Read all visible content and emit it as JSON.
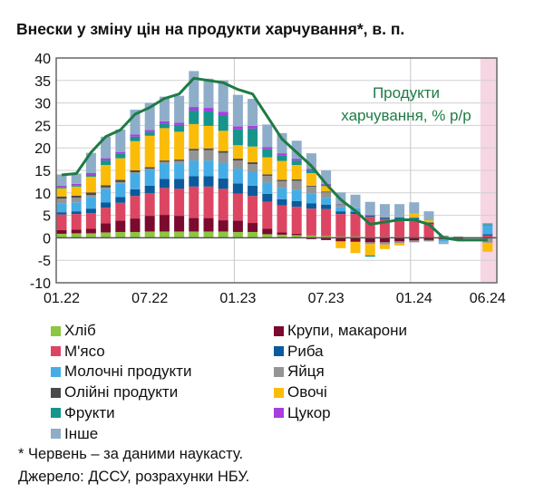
{
  "chart_data": {
    "type": "bar",
    "stacked": true,
    "title": "Внески у зміну цін на продукти харчування*, в. п.",
    "ylim": [
      -10,
      40
    ],
    "yticks": [
      -10,
      -5,
      0,
      5,
      10,
      15,
      20,
      25,
      30,
      35,
      40
    ],
    "xtick_labels": [
      "01.22",
      "07.22",
      "01.23",
      "07.23",
      "01.24",
      "06.24"
    ],
    "xtick_index": [
      0,
      6,
      12,
      18,
      24,
      29
    ],
    "categories": [
      "01.22",
      "02.22",
      "03.22",
      "04.22",
      "05.22",
      "06.22",
      "07.22",
      "08.22",
      "09.22",
      "10.22",
      "11.22",
      "12.22",
      "01.23",
      "02.23",
      "03.23",
      "04.23",
      "05.23",
      "06.23",
      "07.23",
      "08.23",
      "09.23",
      "10.23",
      "11.23",
      "12.23",
      "01.24",
      "02.24",
      "03.24",
      "04.24",
      "05.24",
      "06.24"
    ],
    "highlight_category": "06.24",
    "series": [
      {
        "name": "Хліб",
        "color": "#8dc63f",
        "values": [
          0.9,
          1,
          1,
          1.2,
          1.3,
          1.3,
          1.4,
          1.4,
          1.4,
          1.4,
          1.4,
          1.4,
          1.3,
          1.3,
          0.8,
          0.7,
          0.6,
          0.5,
          0.4,
          0.3,
          0.3,
          0.2,
          0.2,
          0.2,
          0.1,
          0.1,
          0,
          0,
          0,
          0
        ]
      },
      {
        "name": "Крупи, макарони",
        "color": "#7b0a2e",
        "values": [
          0.8,
          0.8,
          1,
          2,
          2.5,
          3,
          3.5,
          3.7,
          3.5,
          3,
          3,
          2.5,
          2.5,
          2,
          1.2,
          0.5,
          0.3,
          -0.3,
          -0.5,
          -0.8,
          -0.9,
          -1,
          -1,
          -0.8,
          -0.6,
          -0.5,
          -0.3,
          -0.2,
          -0.1,
          -0.1
        ]
      },
      {
        "name": "М'ясо",
        "color": "#dc4662",
        "values": [
          3.5,
          3.5,
          3.5,
          3.5,
          4,
          5,
          5,
          6,
          6,
          7,
          7,
          7,
          6,
          6,
          6,
          6,
          6,
          6,
          6,
          5,
          5,
          4.5,
          4,
          4,
          4,
          3,
          0,
          0,
          0,
          0.5
        ]
      },
      {
        "name": "Риба",
        "color": "#0b5a9c",
        "values": [
          0.5,
          0.6,
          1,
          1.2,
          1.3,
          1.5,
          1.7,
          2,
          2.2,
          2.3,
          2.3,
          2.3,
          2.3,
          2.3,
          1.8,
          1.4,
          1.3,
          1.2,
          1,
          0.6,
          0.5,
          0.3,
          0.3,
          0.3,
          0.3,
          0.3,
          0,
          0,
          0,
          0.3
        ]
      },
      {
        "name": "Молочні продукти",
        "color": "#45ade6",
        "values": [
          2,
          2,
          2.5,
          3,
          3,
          3.5,
          3.5,
          3.5,
          3.5,
          3.5,
          3.5,
          3.5,
          3.3,
          3,
          2.5,
          2.5,
          2.5,
          2.2,
          1.5,
          1,
          0.8,
          0,
          0,
          0,
          0.2,
          0,
          -0.5,
          0,
          0,
          2
        ]
      },
      {
        "name": "Яйця",
        "color": "#959595",
        "values": [
          1,
          1,
          0.5,
          0.3,
          0.3,
          0.3,
          0.3,
          0.3,
          0.5,
          2.2,
          2.3,
          2.2,
          1.8,
          1.8,
          1.5,
          1.5,
          2,
          1.5,
          1.2,
          0.5,
          0,
          -0.4,
          -0.5,
          -0.4,
          -0.4,
          -0.3,
          0.5,
          0.3,
          0,
          -1
        ]
      },
      {
        "name": "Олійні продукти",
        "color": "#4a4a4a",
        "values": [
          0.5,
          0.5,
          0.6,
          0.5,
          0.5,
          0.4,
          0.3,
          0.3,
          0.3,
          0.4,
          0.4,
          0.4,
          0.4,
          0.4,
          0.3,
          0.3,
          0.3,
          0.2,
          0.2,
          0.1,
          0,
          0,
          0,
          0,
          0,
          0,
          0,
          0,
          0,
          0
        ]
      },
      {
        "name": "Овочі",
        "color": "#fbbc09",
        "values": [
          1.8,
          2,
          3.5,
          4.5,
          4.8,
          6.5,
          7,
          7.2,
          6.2,
          5.5,
          5,
          4.5,
          3,
          3.5,
          3.8,
          4.2,
          3.2,
          2.8,
          1.2,
          -1.5,
          -2.5,
          -2.5,
          -1,
          -0.5,
          0.8,
          0.5,
          0,
          0,
          0,
          -2
        ]
      },
      {
        "name": "Фрукти",
        "color": "#16958b",
        "values": [
          0.3,
          0.3,
          0.4,
          1,
          1,
          1,
          0.8,
          1,
          1.5,
          3,
          3.2,
          3.4,
          3.5,
          4,
          1.8,
          1.2,
          1,
          0.6,
          0.3,
          0,
          0,
          -0.3,
          0,
          0,
          0,
          0,
          0,
          0,
          0,
          0.2
        ]
      },
      {
        "name": "Цукор",
        "color": "#a83ee0",
        "values": [
          0.3,
          0.3,
          0.4,
          0.5,
          0.4,
          0.5,
          0.5,
          0.5,
          0.5,
          0.8,
          0.8,
          0.8,
          0.7,
          0.6,
          0.5,
          0.5,
          0.4,
          0.3,
          0.2,
          0.1,
          0,
          0,
          0,
          0,
          0,
          0,
          0,
          0,
          0,
          0
        ]
      },
      {
        "name": "Інше",
        "color": "#8eadc9",
        "values": [
          2.5,
          2.3,
          4.5,
          4.8,
          5,
          5.5,
          6,
          5.5,
          6,
          8,
          6.5,
          7,
          7,
          6,
          5,
          4.5,
          4,
          3.5,
          3,
          2.5,
          3,
          3,
          3,
          3,
          2.5,
          2,
          -0.6,
          0,
          0,
          0.3
        ]
      }
    ],
    "line": {
      "name": "Продукти харчування, % р/р",
      "label_line1": "Продукти",
      "label_line2": "харчування, % р/р",
      "color": "#1e7b45",
      "values": [
        14,
        14.3,
        19,
        22.5,
        24,
        27.5,
        29,
        31,
        32,
        35.5,
        35,
        34.5,
        33,
        32,
        27,
        22,
        19,
        16,
        12,
        8.5,
        6,
        3,
        3.5,
        4,
        4,
        3,
        0,
        -0.5,
        -0.5,
        -0.5
      ]
    },
    "grid": true,
    "legend_position": "bottom"
  },
  "footnotes": {
    "note": "* Червень – за даними наукасту.",
    "source": "Джерело: ДССУ, розрахунки НБУ."
  }
}
